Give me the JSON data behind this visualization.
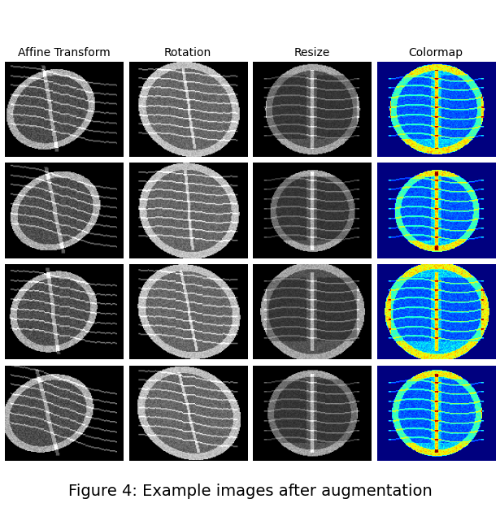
{
  "title": "Figure 4: Example images after augmentation",
  "col_labels": [
    "Affine Transform",
    "Rotation",
    "Resize",
    "Colormap"
  ],
  "nrows": 4,
  "ncols": 4,
  "fig_width": 6.15,
  "fig_height": 6.3,
  "title_fontsize": 14,
  "label_fontsize": 10,
  "background_color": "#ffffff"
}
